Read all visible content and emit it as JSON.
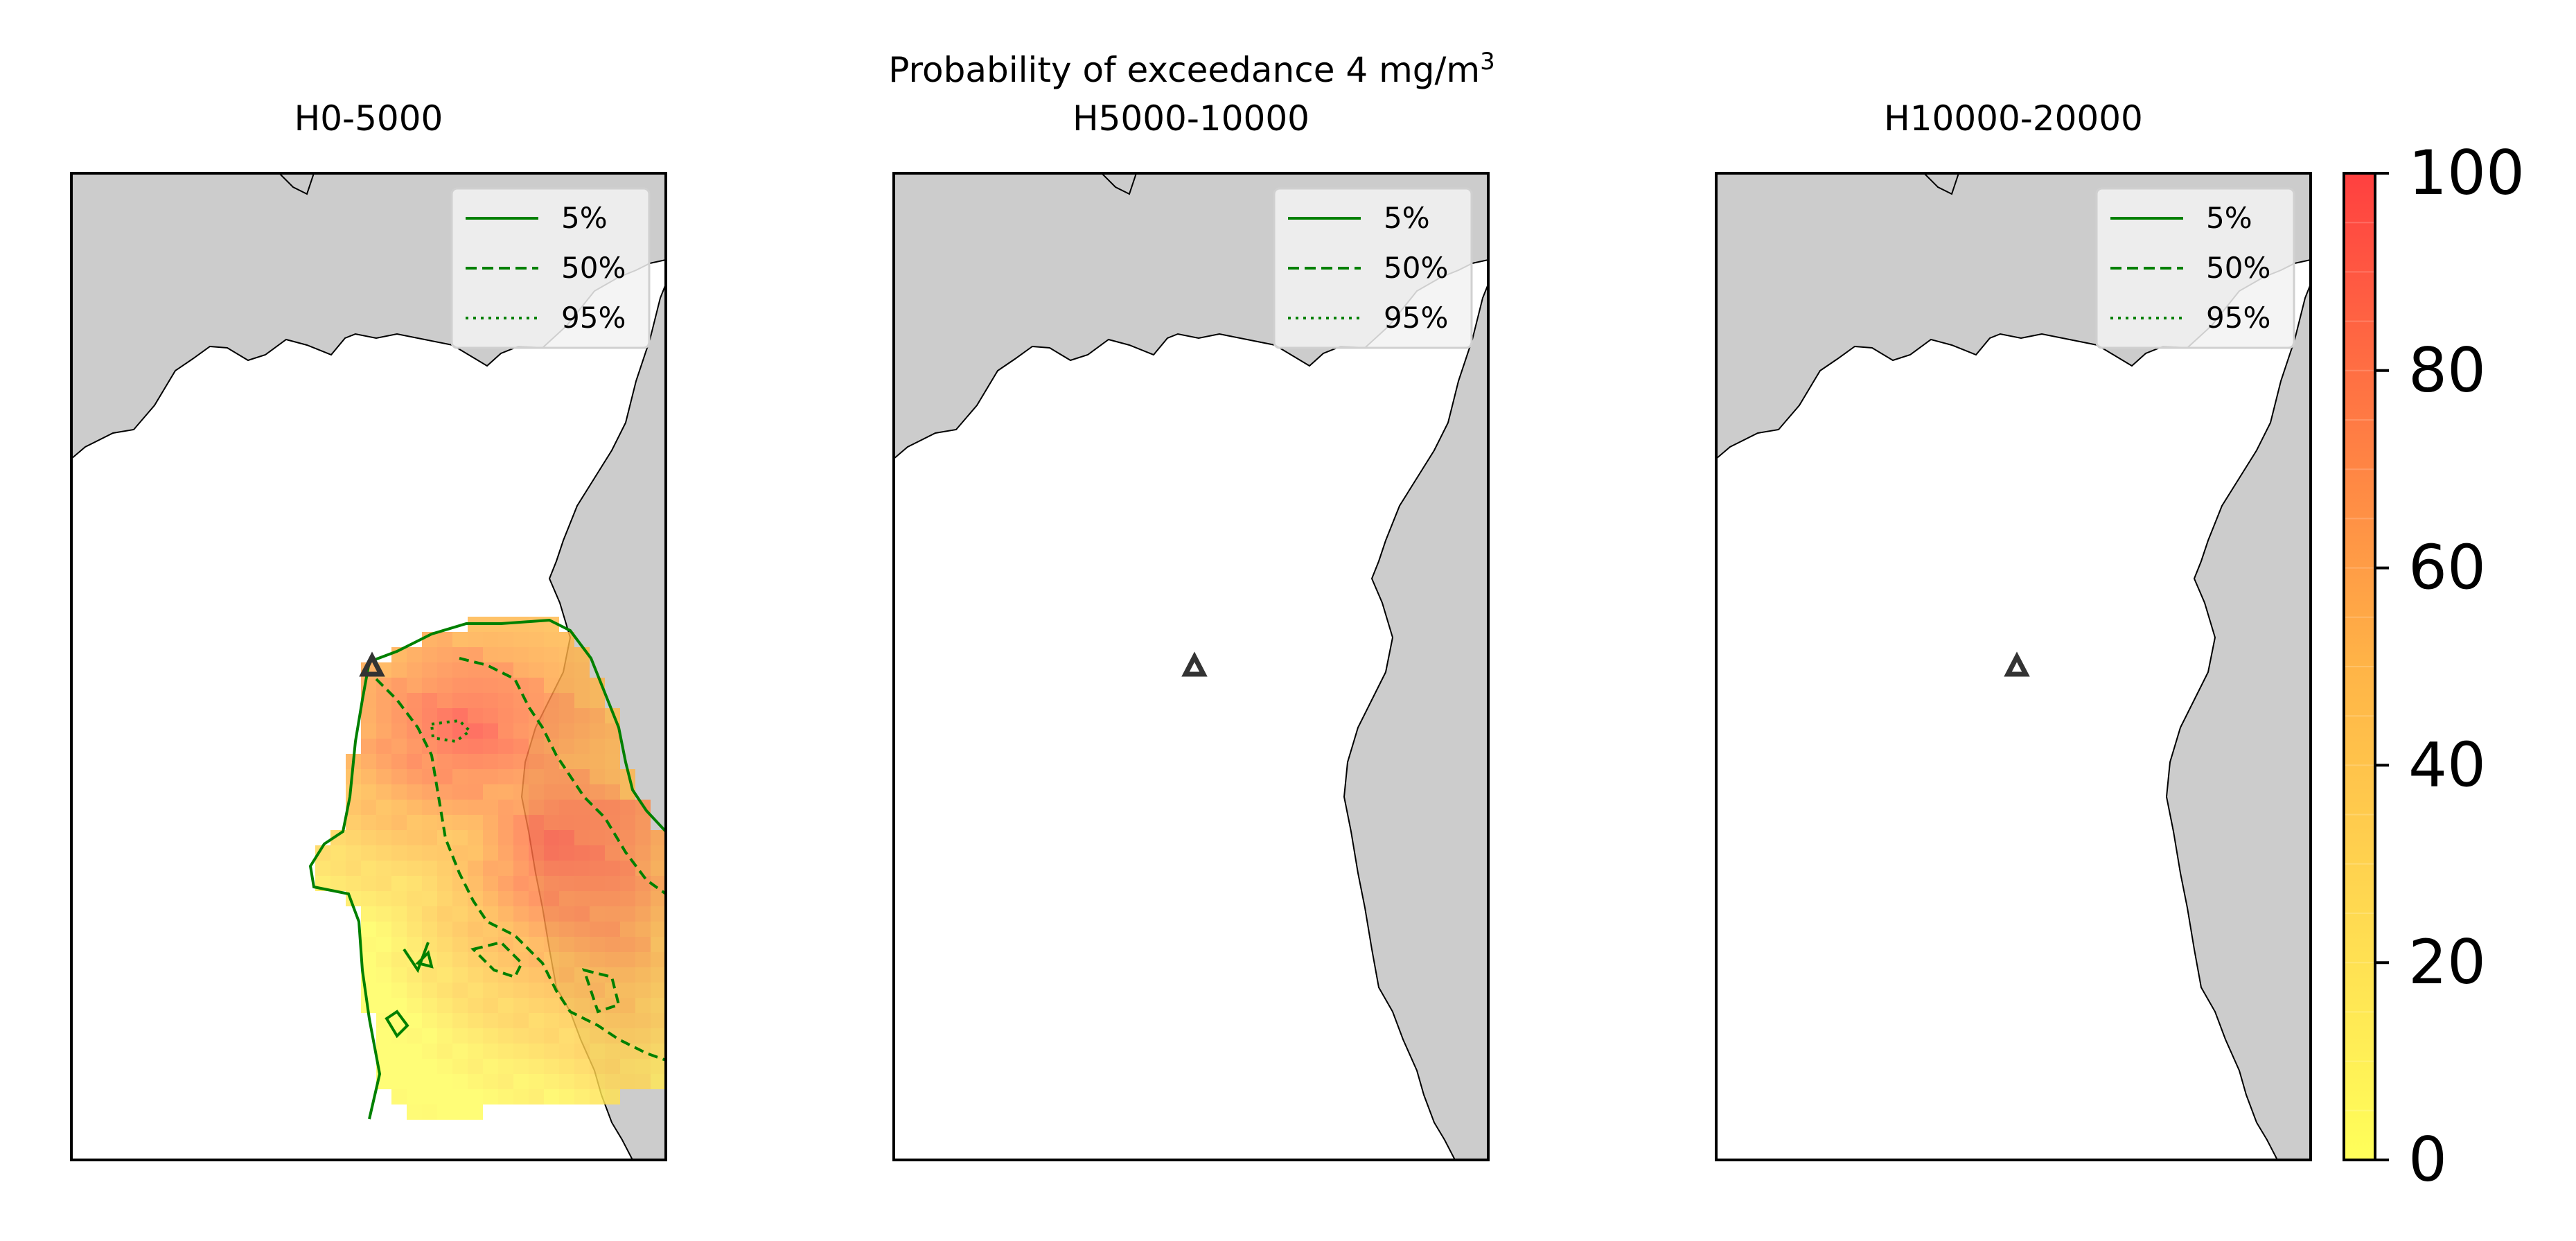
{
  "figure": {
    "suptitle_main": "Probability of exceedance 4 mg/m",
    "suptitle_sup": "3"
  },
  "panels": [
    {
      "title": "H0-5000",
      "has_field": true
    },
    {
      "title": "H5000-10000",
      "has_field": false
    },
    {
      "title": "H10000-20000",
      "has_field": false
    }
  ],
  "legend": {
    "entries": [
      {
        "label": "5%",
        "style": "solid"
      },
      {
        "label": "50%",
        "style": "dashed"
      },
      {
        "label": "95%",
        "style": "dotted"
      }
    ],
    "line_color": "#008000"
  },
  "colorbar": {
    "ticks": [
      "0",
      "20",
      "40",
      "60",
      "80",
      "100"
    ],
    "range": [
      0,
      100
    ],
    "levels": 20,
    "colors": [
      "#ffff5a",
      "#ff4040"
    ]
  },
  "colors": {
    "land": "#cccccc",
    "sea": "#ffffff",
    "coastline": "#000000",
    "vent_marker": "#333333",
    "contour": "#008000"
  },
  "markers": {
    "vent_icon": "triangle-marker"
  }
}
